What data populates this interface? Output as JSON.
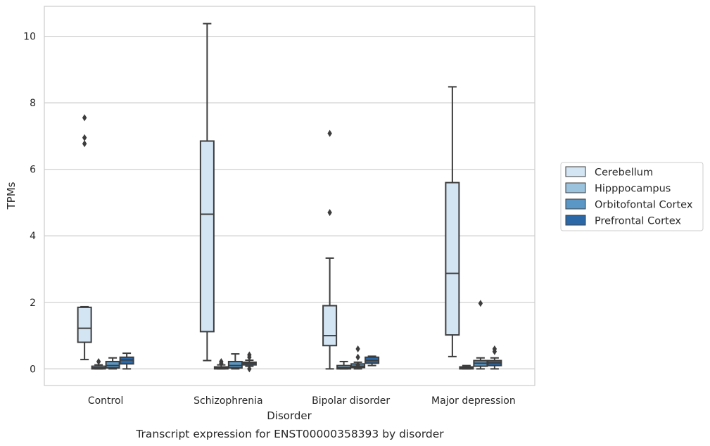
{
  "chart_data": {
    "type": "box",
    "xlabel": "Disorder",
    "ylabel": "TPMs",
    "caption": "Transcript expression for ENST00000358393 by disorder",
    "ylim": [
      -0.5,
      10.9
    ],
    "yticks": [
      0,
      2,
      4,
      6,
      8,
      10
    ],
    "grid": "horizontal",
    "legend_position": "right",
    "categories": [
      "Control",
      "Schizophrenia",
      "Bipolar disorder",
      "Major depression"
    ],
    "series": [
      {
        "name": "Cerebellum",
        "color": "#d3e4f3",
        "boxes": [
          {
            "whislo": 0.28,
            "q1": 0.8,
            "med": 1.22,
            "q3": 1.85,
            "whishi": 1.87,
            "fliers": [
              6.77,
              6.95,
              7.55
            ]
          },
          {
            "whislo": 0.25,
            "q1": 1.12,
            "med": 4.65,
            "q3": 6.85,
            "whishi": 10.38,
            "fliers": []
          },
          {
            "whislo": 0.0,
            "q1": 0.7,
            "med": 1.0,
            "q3": 1.9,
            "whishi": 3.33,
            "fliers": [
              4.7,
              7.08
            ]
          },
          {
            "whislo": 0.37,
            "q1": 1.02,
            "med": 2.87,
            "q3": 5.6,
            "whishi": 8.48,
            "fliers": []
          }
        ]
      },
      {
        "name": "Hipppocampus",
        "color": "#9cc3de",
        "boxes": [
          {
            "whislo": 0.0,
            "q1": 0.0,
            "med": 0.03,
            "q3": 0.08,
            "whishi": 0.12,
            "fliers": [
              0.22
            ]
          },
          {
            "whislo": 0.0,
            "q1": 0.0,
            "med": 0.02,
            "q3": 0.06,
            "whishi": 0.12,
            "fliers": [
              0.17,
              0.22
            ]
          },
          {
            "whislo": 0.0,
            "q1": 0.0,
            "med": 0.04,
            "q3": 0.1,
            "whishi": 0.22,
            "fliers": []
          },
          {
            "whislo": 0.0,
            "q1": 0.0,
            "med": 0.02,
            "q3": 0.06,
            "whishi": 0.1,
            "fliers": []
          }
        ]
      },
      {
        "name": "Orbitofontal Cortex",
        "color": "#5a97c6",
        "boxes": [
          {
            "whislo": 0.0,
            "q1": 0.03,
            "med": 0.1,
            "q3": 0.22,
            "whishi": 0.33,
            "fliers": []
          },
          {
            "whislo": 0.0,
            "q1": 0.03,
            "med": 0.1,
            "q3": 0.22,
            "whishi": 0.45,
            "fliers": []
          },
          {
            "whislo": 0.0,
            "q1": 0.04,
            "med": 0.08,
            "q3": 0.15,
            "whishi": 0.2,
            "fliers": [
              0.12,
              0.35,
              0.6
            ]
          },
          {
            "whislo": 0.0,
            "q1": 0.08,
            "med": 0.17,
            "q3": 0.25,
            "whishi": 0.33,
            "fliers": [
              1.97
            ]
          }
        ]
      },
      {
        "name": "Prefrontal Cortex",
        "color": "#2b68a8",
        "boxes": [
          {
            "whislo": 0.0,
            "q1": 0.15,
            "med": 0.27,
            "q3": 0.35,
            "whishi": 0.47,
            "fliers": []
          },
          {
            "whislo": 0.08,
            "q1": 0.12,
            "med": 0.17,
            "q3": 0.2,
            "whishi": 0.26,
            "fliers": [
              0.0,
              0.35,
              0.42
            ]
          },
          {
            "whislo": 0.1,
            "q1": 0.17,
            "med": 0.25,
            "q3": 0.35,
            "whishi": 0.38,
            "fliers": []
          },
          {
            "whislo": 0.0,
            "q1": 0.1,
            "med": 0.18,
            "q3": 0.25,
            "whishi": 0.33,
            "fliers": [
              0.52,
              0.6
            ]
          }
        ]
      }
    ]
  }
}
